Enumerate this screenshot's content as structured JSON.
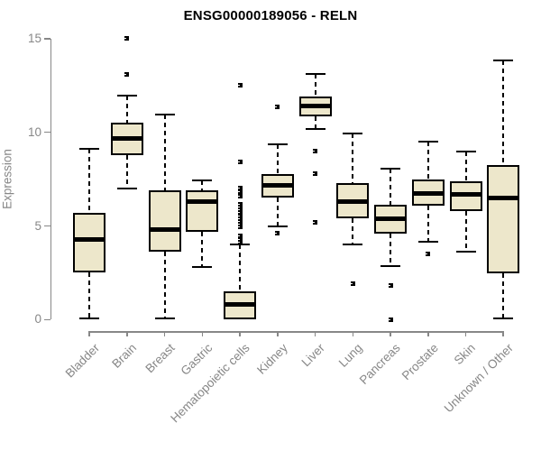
{
  "chart_data": {
    "type": "boxplot",
    "title": "ENSG00000189056 - RELN",
    "ylabel": "Expression",
    "xlabel": "",
    "ylim": [
      0,
      15
    ],
    "yticks": [
      0,
      5,
      10,
      15
    ],
    "grid": false,
    "legend": "none",
    "categories": [
      "Bladder",
      "Brain",
      "Breast",
      "Gastric",
      "Hematopoietic cells",
      "Kidney",
      "Liver",
      "Lung",
      "Pancreas",
      "Prostate",
      "Skin",
      "Unknown / Other"
    ],
    "boxes": [
      {
        "category": "Bladder",
        "whisker_low": 0.05,
        "q1": 2.5,
        "median": 4.3,
        "q3": 5.7,
        "whisker_high": 9.1,
        "outliers": []
      },
      {
        "category": "Brain",
        "whisker_low": 7.0,
        "q1": 8.8,
        "median": 9.65,
        "q3": 10.5,
        "whisker_high": 11.95,
        "outliers": [
          15.0,
          13.1
        ]
      },
      {
        "category": "Breast",
        "whisker_low": 0.05,
        "q1": 3.65,
        "median": 4.8,
        "q3": 6.9,
        "whisker_high": 10.95,
        "outliers": []
      },
      {
        "category": "Gastric",
        "whisker_low": 2.8,
        "q1": 4.7,
        "median": 6.3,
        "q3": 6.9,
        "whisker_high": 7.45,
        "outliers": []
      },
      {
        "category": "Hematopoietic cells",
        "whisker_low": 0.0,
        "q1": 0.0,
        "median": 0.8,
        "q3": 1.5,
        "whisker_high": 4.0,
        "outliers": [
          12.5,
          8.4,
          7.0,
          6.85,
          6.6,
          6.15,
          6.0,
          5.85,
          5.7,
          5.55,
          5.4,
          5.25,
          5.1,
          4.95,
          4.45,
          4.3,
          4.15
        ]
      },
      {
        "category": "Kidney",
        "whisker_low": 5.0,
        "q1": 6.5,
        "median": 7.15,
        "q3": 7.75,
        "whisker_high": 9.35,
        "outliers": [
          11.35,
          4.6
        ]
      },
      {
        "category": "Liver",
        "whisker_low": 10.2,
        "q1": 10.85,
        "median": 11.4,
        "q3": 11.9,
        "whisker_high": 13.1,
        "outliers": [
          9.0,
          7.8,
          5.2
        ]
      },
      {
        "category": "Lung",
        "whisker_low": 4.0,
        "q1": 5.4,
        "median": 6.3,
        "q3": 7.3,
        "whisker_high": 9.95,
        "outliers": [
          1.9
        ]
      },
      {
        "category": "Pancreas",
        "whisker_low": 2.85,
        "q1": 4.6,
        "median": 5.4,
        "q3": 6.15,
        "whisker_high": 8.05,
        "outliers": [
          1.8,
          0.0
        ]
      },
      {
        "category": "Prostate",
        "whisker_low": 4.15,
        "q1": 6.1,
        "median": 6.75,
        "q3": 7.5,
        "whisker_high": 9.5,
        "outliers": [
          3.5
        ]
      },
      {
        "category": "Skin",
        "whisker_low": 3.65,
        "q1": 5.8,
        "median": 6.7,
        "q3": 7.4,
        "whisker_high": 8.95,
        "outliers": []
      },
      {
        "category": "Unknown / Other",
        "whisker_low": 0.05,
        "q1": 2.45,
        "median": 6.5,
        "q3": 8.25,
        "whisker_high": 13.85,
        "outliers": []
      }
    ],
    "colors": {
      "box_fill": "#EDE7CB",
      "box_line": "#000000",
      "axis": "#878787",
      "title": "#000000",
      "background": "#FFFFFF"
    }
  }
}
